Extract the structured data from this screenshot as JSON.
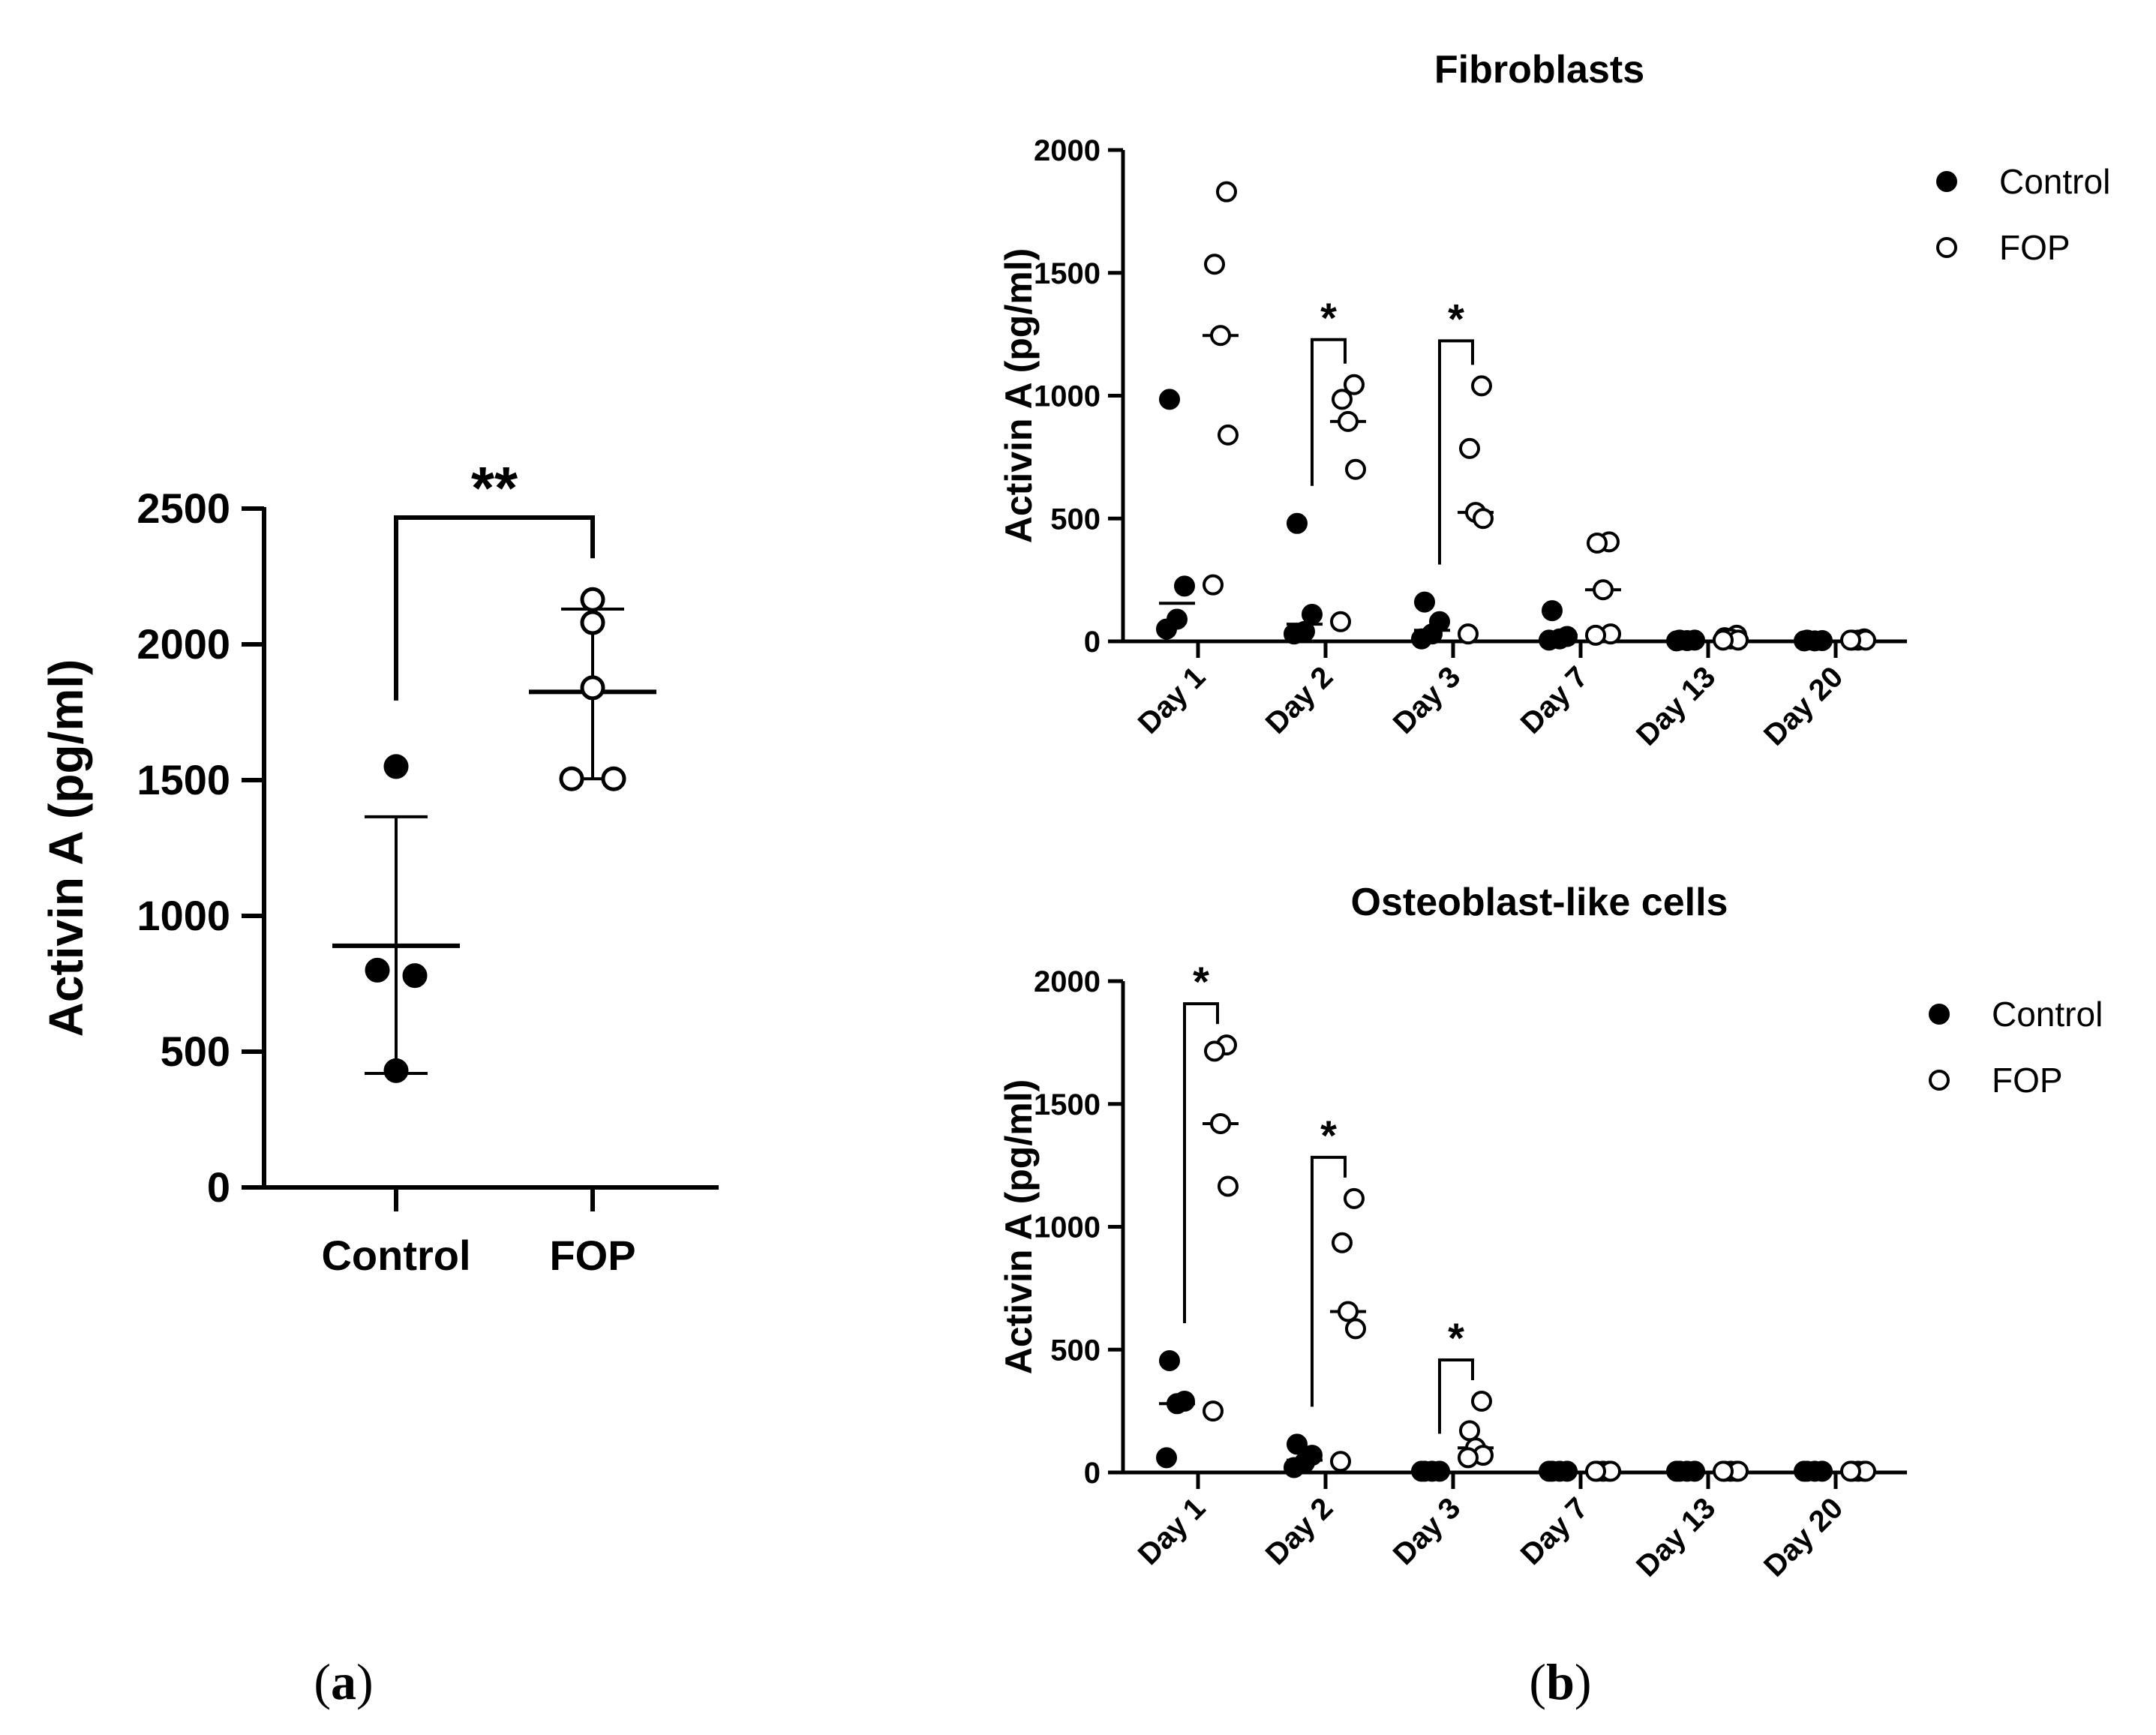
{
  "chart_data": [
    {
      "id": "a",
      "type": "scatter",
      "panel_label": "a",
      "ylabel": "Activin A (pg/ml)",
      "ylim": [
        0,
        2500
      ],
      "yticks": [
        0,
        500,
        1000,
        1500,
        2000,
        2500
      ],
      "categories": [
        "Control",
        "FOP"
      ],
      "groups": [
        {
          "name": "Control",
          "marker": "filled",
          "points": [
            1550,
            800,
            780,
            430
          ],
          "mean": 890,
          "sd_low": 420,
          "sd_high": 1365
        },
        {
          "name": "FOP",
          "marker": "open",
          "points": [
            2165,
            2080,
            1840,
            1505,
            1505
          ],
          "mean": 1825,
          "sd_low": 1505,
          "sd_high": 2130
        }
      ],
      "significance": [
        {
          "between": [
            "Control",
            "FOP"
          ],
          "label": "**"
        }
      ]
    },
    {
      "id": "b1",
      "type": "scatter",
      "panel_label": "b",
      "title": "Fibroblasts",
      "ylabel": "Activin A (pg/ml)",
      "ylim": [
        0,
        2000
      ],
      "yticks": [
        0,
        500,
        1000,
        1500,
        2000
      ],
      "categories": [
        "Day 1",
        "Day 2",
        "Day 3",
        "Day 7",
        "Day 13",
        "Day 20"
      ],
      "legend": [
        "Control",
        "FOP"
      ],
      "series": [
        {
          "name": "Control",
          "marker": "filled",
          "points": [
            [
              985,
              225,
              90,
              50
            ],
            [
              480,
              110,
              40,
              30
            ],
            [
              160,
              80,
              30,
              10
            ],
            [
              125,
              20,
              10,
              5
            ],
            [
              5,
              5,
              3,
              2
            ],
            [
              5,
              3,
              2,
              2
            ]
          ],
          "mean": [
            155,
            70,
            45,
            25,
            3,
            2
          ]
        },
        {
          "name": "FOP",
          "marker": "open",
          "points": [
            [
              1830,
              1535,
              1245,
              840,
              230
            ],
            [
              1045,
              985,
              895,
              700,
              80
            ],
            [
              1040,
              785,
              525,
              500,
              30
            ],
            [
              405,
              400,
              210,
              30,
              25
            ],
            [
              25,
              15,
              10,
              5,
              5
            ],
            [
              10,
              5,
              5,
              5,
              5
            ]
          ],
          "mean": [
            1245,
            895,
            525,
            210,
            10,
            5
          ]
        }
      ],
      "significance": [
        {
          "category": "Day 2",
          "label": "*"
        },
        {
          "category": "Day 3",
          "label": "*"
        }
      ]
    },
    {
      "id": "b2",
      "type": "scatter",
      "title": "Osteoblast-like cells",
      "ylabel": "Activin A (pg/ml)",
      "ylim": [
        0,
        2000
      ],
      "yticks": [
        0,
        500,
        1000,
        1500,
        2000
      ],
      "categories": [
        "Day 1",
        "Day 2",
        "Day 3",
        "Day 7",
        "Day 13",
        "Day 20"
      ],
      "legend": [
        "Control",
        "FOP"
      ],
      "series": [
        {
          "name": "Control",
          "marker": "filled",
          "points": [
            [
              455,
              290,
              280,
              60
            ],
            [
              115,
              70,
              40,
              20
            ],
            [
              5,
              5,
              5,
              5
            ],
            [
              5,
              5,
              5,
              5
            ],
            [
              5,
              5,
              5,
              5
            ],
            [
              5,
              5,
              5,
              5
            ]
          ],
          "mean": [
            280,
            50,
            5,
            5,
            5,
            5
          ]
        },
        {
          "name": "FOP",
          "marker": "open",
          "points": [
            [
              1740,
              1715,
              1420,
              1165,
              250
            ],
            [
              1115,
              935,
              655,
              585,
              45
            ],
            [
              290,
              170,
              100,
              70,
              60
            ],
            [
              5,
              5,
              5,
              5,
              5
            ],
            [
              5,
              5,
              5,
              5,
              5
            ],
            [
              5,
              5,
              5,
              5,
              5
            ]
          ],
          "mean": [
            1420,
            655,
            100,
            5,
            5,
            5
          ]
        }
      ],
      "significance": [
        {
          "category": "Day 1",
          "label": "*"
        },
        {
          "category": "Day 2",
          "label": "*"
        },
        {
          "category": "Day 3",
          "label": "*"
        }
      ]
    }
  ]
}
